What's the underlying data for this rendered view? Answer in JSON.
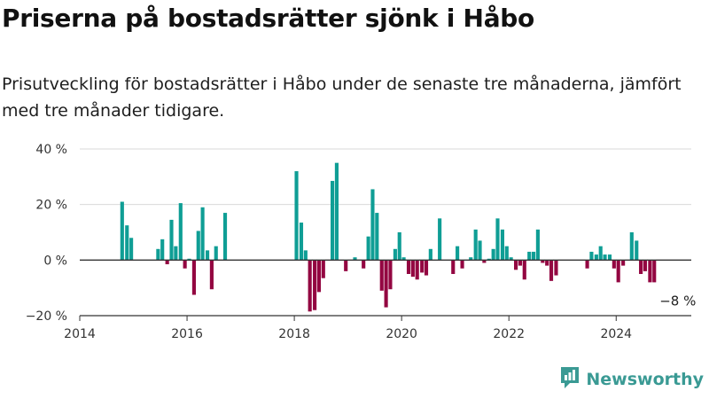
{
  "header": {
    "title": "Priserna på bostadsrätter sjönk i Håbo",
    "subtitle": "Prisutveckling för bostadsrätter i Håbo under de senaste tre månaderna, jämfört med tre månader tidigare."
  },
  "brand": {
    "name": "Newsworthy",
    "icon": "newsworthy-logo-icon"
  },
  "colors": {
    "positive": "#0f9e95",
    "negative": "#930641",
    "grid": "#d9d9d9",
    "axis": "#333333"
  },
  "chart_data": {
    "type": "bar",
    "title": "",
    "xlabel": "",
    "ylabel": "",
    "ylim": [
      -20,
      40
    ],
    "xlim": [
      2014,
      2025.4
    ],
    "grid": true,
    "y_ticks": [
      {
        "value": -20,
        "label": "−20 %"
      },
      {
        "value": 0,
        "label": "0 %"
      },
      {
        "value": 20,
        "label": "20 %"
      },
      {
        "value": 40,
        "label": "40 %"
      }
    ],
    "x_ticks": [
      {
        "value": 2014,
        "label": "2014"
      },
      {
        "value": 2016,
        "label": "2016"
      },
      {
        "value": 2018,
        "label": "2018"
      },
      {
        "value": 2020,
        "label": "2020"
      },
      {
        "value": 2022,
        "label": "2022"
      },
      {
        "value": 2024,
        "label": "2024"
      }
    ],
    "annotation": {
      "x": 2024.71,
      "y": -8,
      "label": "−8 %"
    },
    "series": [
      {
        "x": [
          2014.79,
          2014.88,
          2014.96,
          2015.46,
          2015.54,
          2015.63,
          2015.71,
          2015.79,
          2015.88,
          2015.96,
          2016.04,
          2016.13,
          2016.21,
          2016.29,
          2016.38,
          2016.46,
          2016.54,
          2016.71,
          2016.79,
          2018.04,
          2018.13,
          2018.21,
          2018.29,
          2018.38,
          2018.46,
          2018.54,
          2018.71,
          2018.79,
          2018.96,
          2019.13,
          2019.29,
          2019.38,
          2019.46,
          2019.54,
          2019.63,
          2019.71,
          2019.79,
          2019.88,
          2019.96,
          2020.04,
          2020.13,
          2020.21,
          2020.29,
          2020.38,
          2020.46,
          2020.54,
          2020.71,
          2020.96,
          2021.04,
          2021.13,
          2021.29,
          2021.38,
          2021.46,
          2021.54,
          2021.63,
          2021.71,
          2021.79,
          2021.88,
          2021.96,
          2022.04,
          2022.13,
          2022.21,
          2022.29,
          2022.38,
          2022.46,
          2022.54,
          2022.63,
          2022.71,
          2022.79,
          2022.88,
          2023.46,
          2023.54,
          2023.63,
          2023.71,
          2023.79,
          2023.88,
          2023.96,
          2024.04,
          2024.13,
          2024.21,
          2024.29,
          2024.38,
          2024.46,
          2024.54,
          2024.63,
          2024.71
        ],
        "values": [
          21,
          12.5,
          8,
          4,
          7.5,
          -1.5,
          14.5,
          5,
          20.5,
          -3,
          0.5,
          -12.5,
          10.5,
          19,
          3.5,
          -10.5,
          5,
          17,
          0,
          32,
          13.5,
          3.5,
          -18.5,
          -18,
          -11.5,
          -6.5,
          28.5,
          35,
          -4,
          1,
          -3,
          8.5,
          25.5,
          17,
          -11,
          -17,
          -10.5,
          4,
          10,
          1,
          -5,
          -6,
          -7,
          -4.5,
          -5.5,
          4,
          15,
          -5,
          5,
          -3,
          1,
          11,
          7,
          -1,
          0.5,
          4,
          15,
          11,
          5,
          1,
          -3.5,
          -2,
          -7,
          3,
          3,
          11,
          -1,
          -2,
          -7.5,
          -5.5,
          -3,
          3,
          2,
          5,
          2,
          2,
          -3,
          -8,
          -2,
          0,
          10,
          7,
          -5,
          -4,
          -8,
          -8
        ]
      }
    ]
  }
}
